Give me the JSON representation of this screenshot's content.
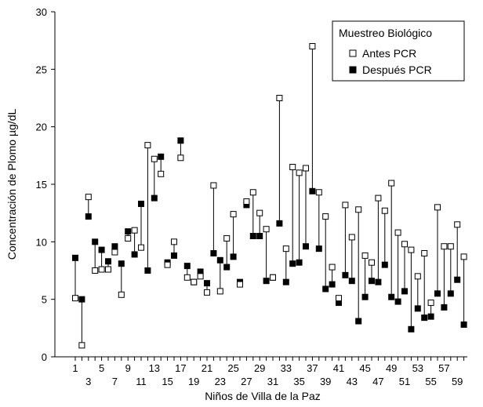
{
  "chart_data": {
    "type": "scatter",
    "title": "",
    "xlabel": "Niños de Villa de la Paz",
    "ylabel": "Concentración de Plomo µg/dL",
    "ylim": [
      0,
      30
    ],
    "yticks": [
      0,
      5,
      10,
      15,
      20,
      25,
      30
    ],
    "xticks_row1": [
      1,
      5,
      9,
      13,
      17,
      21,
      25,
      29,
      33,
      37,
      41,
      45,
      49,
      53,
      57
    ],
    "xticks_row2": [
      3,
      7,
      11,
      15,
      19,
      23,
      27,
      31,
      35,
      39,
      43,
      47,
      51,
      55,
      59
    ],
    "x": [
      1,
      2,
      3,
      4,
      5,
      6,
      7,
      8,
      9,
      10,
      11,
      12,
      13,
      14,
      15,
      16,
      17,
      18,
      19,
      20,
      21,
      22,
      23,
      24,
      25,
      26,
      27,
      28,
      29,
      30,
      31,
      32,
      33,
      34,
      35,
      36,
      37,
      38,
      39,
      40,
      41,
      42,
      43,
      44,
      45,
      46,
      47,
      48,
      49,
      50,
      51,
      52,
      53,
      54,
      55,
      56,
      57,
      58,
      59,
      60
    ],
    "series": [
      {
        "name": "Antes PCR",
        "marker": "open-square",
        "color": "#000000",
        "values": [
          5.1,
          1.0,
          13.9,
          7.5,
          7.6,
          7.6,
          9.1,
          5.4,
          10.3,
          11.0,
          9.5,
          18.4,
          17.2,
          15.9,
          8.0,
          10.0,
          17.3,
          6.9,
          6.5,
          7.0,
          5.6,
          14.9,
          5.7,
          10.3,
          12.4,
          6.3,
          13.5,
          14.3,
          12.5,
          11.1,
          6.9,
          22.5,
          9.4,
          16.5,
          16.0,
          16.4,
          27.0,
          14.3,
          12.2,
          7.8,
          5.1,
          13.2,
          10.4,
          12.8,
          8.8,
          8.2,
          13.8,
          12.7,
          15.1,
          10.8,
          9.8,
          9.3,
          7.0,
          9.0,
          4.7,
          13.0,
          9.6,
          9.6,
          11.5,
          8.7
        ]
      },
      {
        "name": "Después PCR",
        "marker": "filled-square",
        "color": "#000000",
        "values": [
          8.6,
          5.0,
          12.2,
          10.0,
          9.3,
          8.3,
          9.6,
          8.1,
          10.9,
          8.9,
          13.3,
          7.5,
          13.8,
          17.4,
          8.2,
          8.8,
          18.8,
          7.9,
          6.5,
          7.4,
          6.4,
          9.0,
          8.4,
          7.8,
          8.7,
          6.5,
          13.2,
          10.5,
          10.5,
          6.6,
          6.9,
          11.6,
          6.5,
          8.1,
          8.2,
          9.6,
          14.4,
          9.4,
          5.9,
          6.3,
          4.7,
          7.1,
          6.6,
          3.1,
          5.2,
          6.6,
          6.5,
          8.0,
          5.2,
          4.8,
          5.7,
          2.4,
          4.2,
          3.4,
          3.5,
          5.5,
          4.3,
          5.5,
          6.7,
          2.8
        ]
      }
    ],
    "legend": {
      "title": "Muestreo Biológico",
      "position": "top-right",
      "entries": [
        "Antes PCR",
        "Después PCR"
      ]
    },
    "grid": false
  }
}
